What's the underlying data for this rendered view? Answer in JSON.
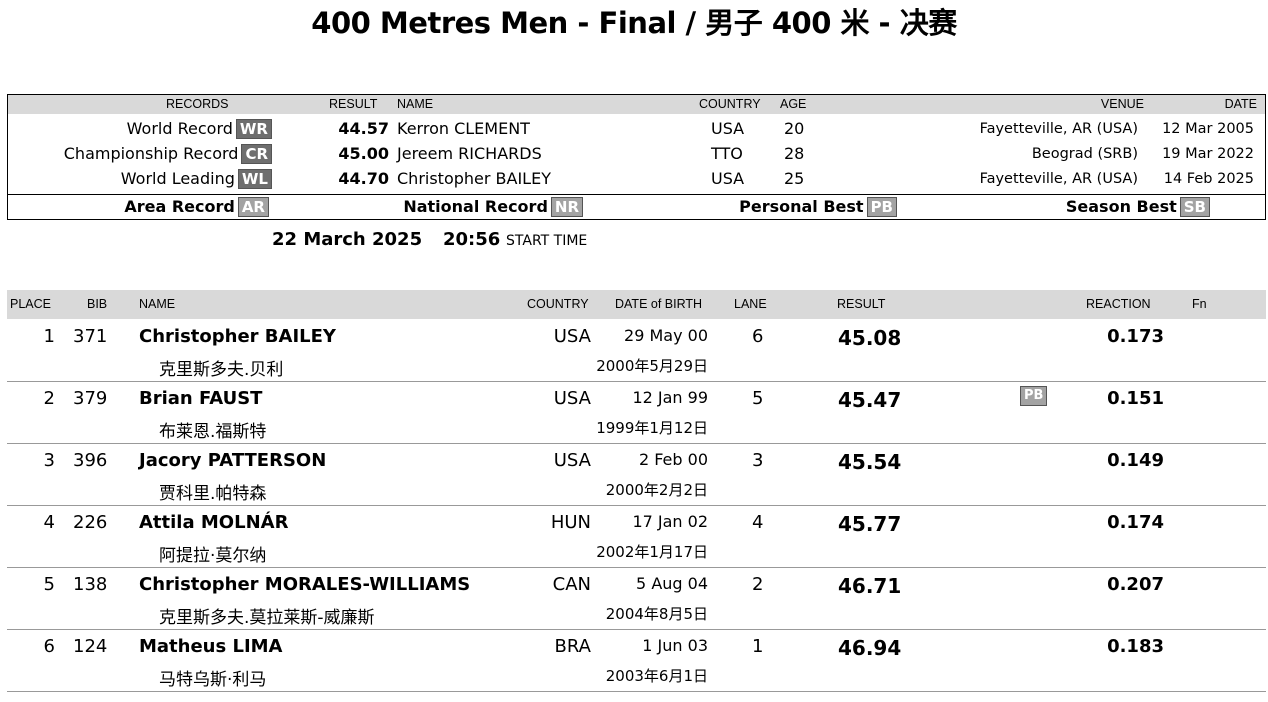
{
  "title": "400 Metres Men - Final / 男子 400 米 - 决赛",
  "records": {
    "headers": {
      "records": "RECORDS",
      "result": "RESULT",
      "name": "NAME",
      "country": "COUNTRY",
      "age": "AGE",
      "venue": "VENUE",
      "date": "DATE"
    },
    "rows": [
      {
        "label": "World Record",
        "badge": "WR",
        "result": "44.57",
        "name": "Kerron CLEMENT",
        "country": "USA",
        "age": "20",
        "venue": "Fayetteville, AR (USA)",
        "date": "12 Mar 2005"
      },
      {
        "label": "Championship Record",
        "badge": "CR",
        "result": "45.00",
        "name": "Jereem RICHARDS",
        "country": "TTO",
        "age": "28",
        "venue": "Beograd (SRB)",
        "date": "19 Mar 2022"
      },
      {
        "label": "World Leading",
        "badge": "WL",
        "result": "44.70",
        "name": "Christopher BAILEY",
        "country": "USA",
        "age": "25",
        "venue": "Fayetteville, AR (USA)",
        "date": "14 Feb 2025"
      }
    ],
    "legend": [
      {
        "label": "Area Record",
        "badge": "AR"
      },
      {
        "label": "National Record",
        "badge": "NR"
      },
      {
        "label": "Personal Best",
        "badge": "PB"
      },
      {
        "label": "Season Best",
        "badge": "SB"
      }
    ]
  },
  "event": {
    "date": "22 March  2025",
    "time": "20:56",
    "time_label": "START TIME"
  },
  "results": {
    "headers": {
      "place": "PLACE",
      "bib": "BIB",
      "name": "NAME",
      "country": "COUNTRY",
      "dob": "DATE of BIRTH",
      "lane": "LANE",
      "result": "RESULT",
      "reaction": "REACTION",
      "fn": "Fn"
    },
    "rows": [
      {
        "place": "1",
        "bib": "371",
        "name": "Christopher  BAILEY",
        "name_cn": "克里斯多夫.贝利",
        "country": "USA",
        "dob": "29 May 00",
        "dob_cn": "2000年5月29日",
        "lane": "6",
        "result": "45.08",
        "badge": "",
        "reaction": "0.173"
      },
      {
        "place": "2",
        "bib": "379",
        "name": "Brian  FAUST",
        "name_cn": "布莱恩.福斯特",
        "country": "USA",
        "dob": "12 Jan 99",
        "dob_cn": "1999年1月12日",
        "lane": "5",
        "result": "45.47",
        "badge": "PB",
        "reaction": "0.151"
      },
      {
        "place": "3",
        "bib": "396",
        "name": "Jacory  PATTERSON",
        "name_cn": "贾科里.帕特森",
        "country": "USA",
        "dob": "2 Feb 00",
        "dob_cn": "2000年2月2日",
        "lane": "3",
        "result": "45.54",
        "badge": "",
        "reaction": "0.149"
      },
      {
        "place": "4",
        "bib": "226",
        "name": "Attila  MOLNÁR",
        "name_cn": "阿提拉·莫尔纳",
        "country": "HUN",
        "dob": "17 Jan 02",
        "dob_cn": "2002年1月17日",
        "lane": "4",
        "result": "45.77",
        "badge": "",
        "reaction": "0.174"
      },
      {
        "place": "5",
        "bib": "138",
        "name": "Christopher  MORALES-WILLIAMS",
        "name_cn": "克里斯多夫.莫拉莱斯-威廉斯",
        "country": "CAN",
        "dob": "5 Aug 04",
        "dob_cn": "2004年8月5日",
        "lane": "2",
        "result": "46.71",
        "badge": "",
        "reaction": "0.207"
      },
      {
        "place": "6",
        "bib": "124",
        "name": "Matheus  LIMA",
        "name_cn": "马特乌斯·利马",
        "country": "BRA",
        "dob": "1 Jun 03",
        "dob_cn": "2003年6月1日",
        "lane": "1",
        "result": "46.94",
        "badge": "",
        "reaction": "0.183"
      }
    ]
  }
}
